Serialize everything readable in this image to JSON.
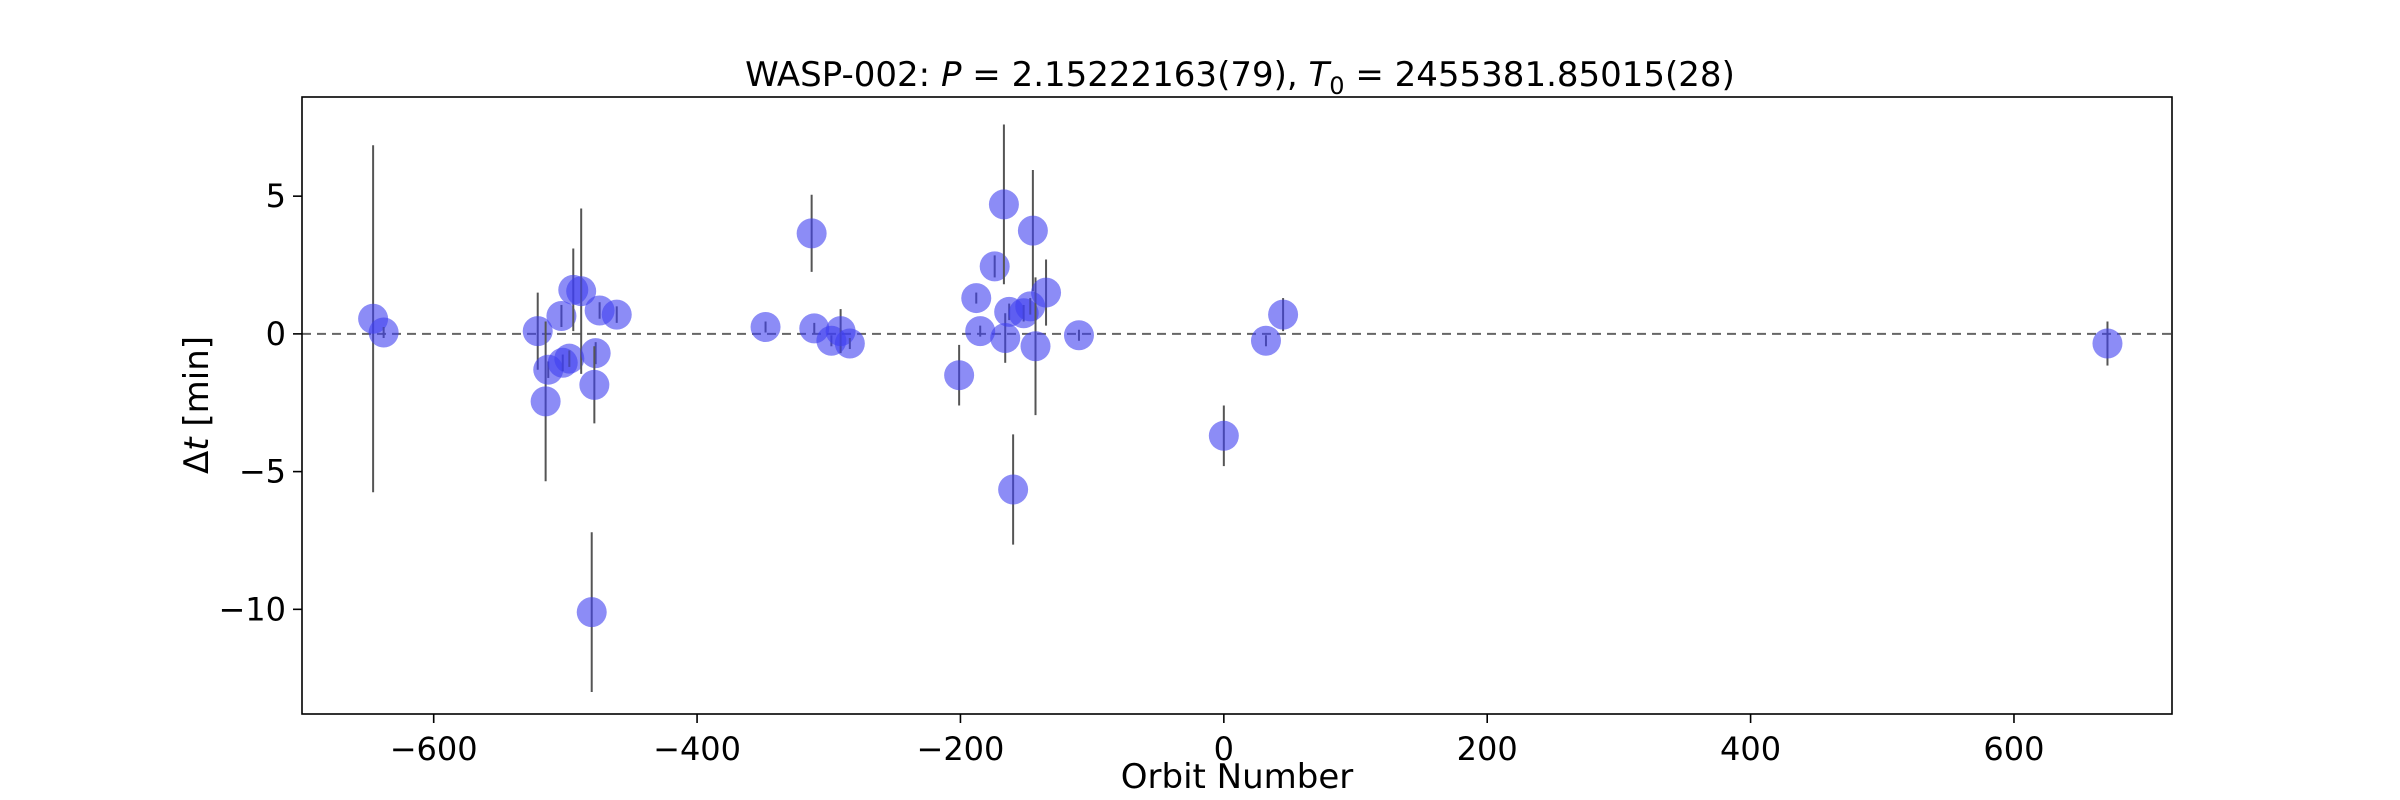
{
  "chart_data": {
    "type": "scatter",
    "title_prefix": "WASP-002: ",
    "title_P_symbol": "P",
    "title_P_value": " = 2.15222163(79), ",
    "title_T_symbol": "T",
    "title_T_sub": "0",
    "title_T_value": " = 2455381.85015(28)",
    "xlabel": "Orbit Number",
    "ylabel_delta": "Δ",
    "ylabel_t": "t",
    "ylabel_unit": " [min]",
    "xlim": [
      -700,
      720
    ],
    "ylim": [
      -13.8,
      8.6
    ],
    "xticks": [
      -600,
      -400,
      -200,
      0,
      200,
      400,
      600
    ],
    "xtick_labels": [
      "−600",
      "−400",
      "−200",
      "0",
      "200",
      "400",
      "600"
    ],
    "yticks": [
      -10,
      -5,
      0,
      5
    ],
    "ytick_labels": [
      "−10",
      "−5",
      "0",
      "5"
    ],
    "reference_line_y": 0,
    "marker_color": "#4040f0",
    "errorbar_color": "#555555",
    "grid": false,
    "points": [
      {
        "x": -646,
        "y": 0.55,
        "err": 6.3
      },
      {
        "x": -638,
        "y": 0.05,
        "err": 0.2
      },
      {
        "x": -521,
        "y": 0.1,
        "err": 1.4
      },
      {
        "x": -515,
        "y": -2.45,
        "err": 2.9
      },
      {
        "x": -513,
        "y": -1.3,
        "err": 0.3
      },
      {
        "x": -503,
        "y": 0.65,
        "err": 0.4
      },
      {
        "x": -502,
        "y": -1.05,
        "err": 0.3
      },
      {
        "x": -497,
        "y": -0.9,
        "err": 0.3
      },
      {
        "x": -494,
        "y": 1.6,
        "err": 1.5
      },
      {
        "x": -488,
        "y": 1.55,
        "err": 3.0
      },
      {
        "x": -480,
        "y": -10.1,
        "err": 2.9
      },
      {
        "x": -477,
        "y": -0.7,
        "err": 0.4
      },
      {
        "x": -478,
        "y": -1.85,
        "err": 1.4
      },
      {
        "x": -474,
        "y": 0.85,
        "err": 0.3
      },
      {
        "x": -461,
        "y": 0.7,
        "err": 0.3
      },
      {
        "x": -348,
        "y": 0.25,
        "err": 0.2
      },
      {
        "x": -313,
        "y": 3.65,
        "err": 1.4
      },
      {
        "x": -311,
        "y": 0.2,
        "err": 0.2
      },
      {
        "x": -298,
        "y": -0.25,
        "err": 0.2
      },
      {
        "x": -291,
        "y": 0.1,
        "err": 0.8
      },
      {
        "x": -284,
        "y": -0.35,
        "err": 0.2
      },
      {
        "x": -201,
        "y": -1.5,
        "err": 1.1
      },
      {
        "x": -188,
        "y": 1.3,
        "err": 0.2
      },
      {
        "x": -185,
        "y": 0.1,
        "err": 0.2
      },
      {
        "x": -174,
        "y": 2.45,
        "err": 0.4
      },
      {
        "x": -167,
        "y": 4.7,
        "err": 2.9
      },
      {
        "x": -166,
        "y": -0.15,
        "err": 0.9
      },
      {
        "x": -163,
        "y": 0.8,
        "err": 0.3
      },
      {
        "x": -160,
        "y": -5.65,
        "err": 2.0
      },
      {
        "x": -152,
        "y": 0.75,
        "err": 0.3
      },
      {
        "x": -147,
        "y": 1.0,
        "err": 0.3
      },
      {
        "x": -145,
        "y": 3.75,
        "err": 2.2
      },
      {
        "x": -143,
        "y": -0.45,
        "err": 2.5
      },
      {
        "x": -135,
        "y": 1.5,
        "err": 1.2
      },
      {
        "x": -110,
        "y": -0.05,
        "err": 0.2
      },
      {
        "x": 0,
        "y": -3.7,
        "err": 1.1
      },
      {
        "x": 32,
        "y": -0.25,
        "err": 0.2
      },
      {
        "x": 45,
        "y": 0.7,
        "err": 0.6
      },
      {
        "x": 671,
        "y": -0.35,
        "err": 0.8
      }
    ]
  }
}
